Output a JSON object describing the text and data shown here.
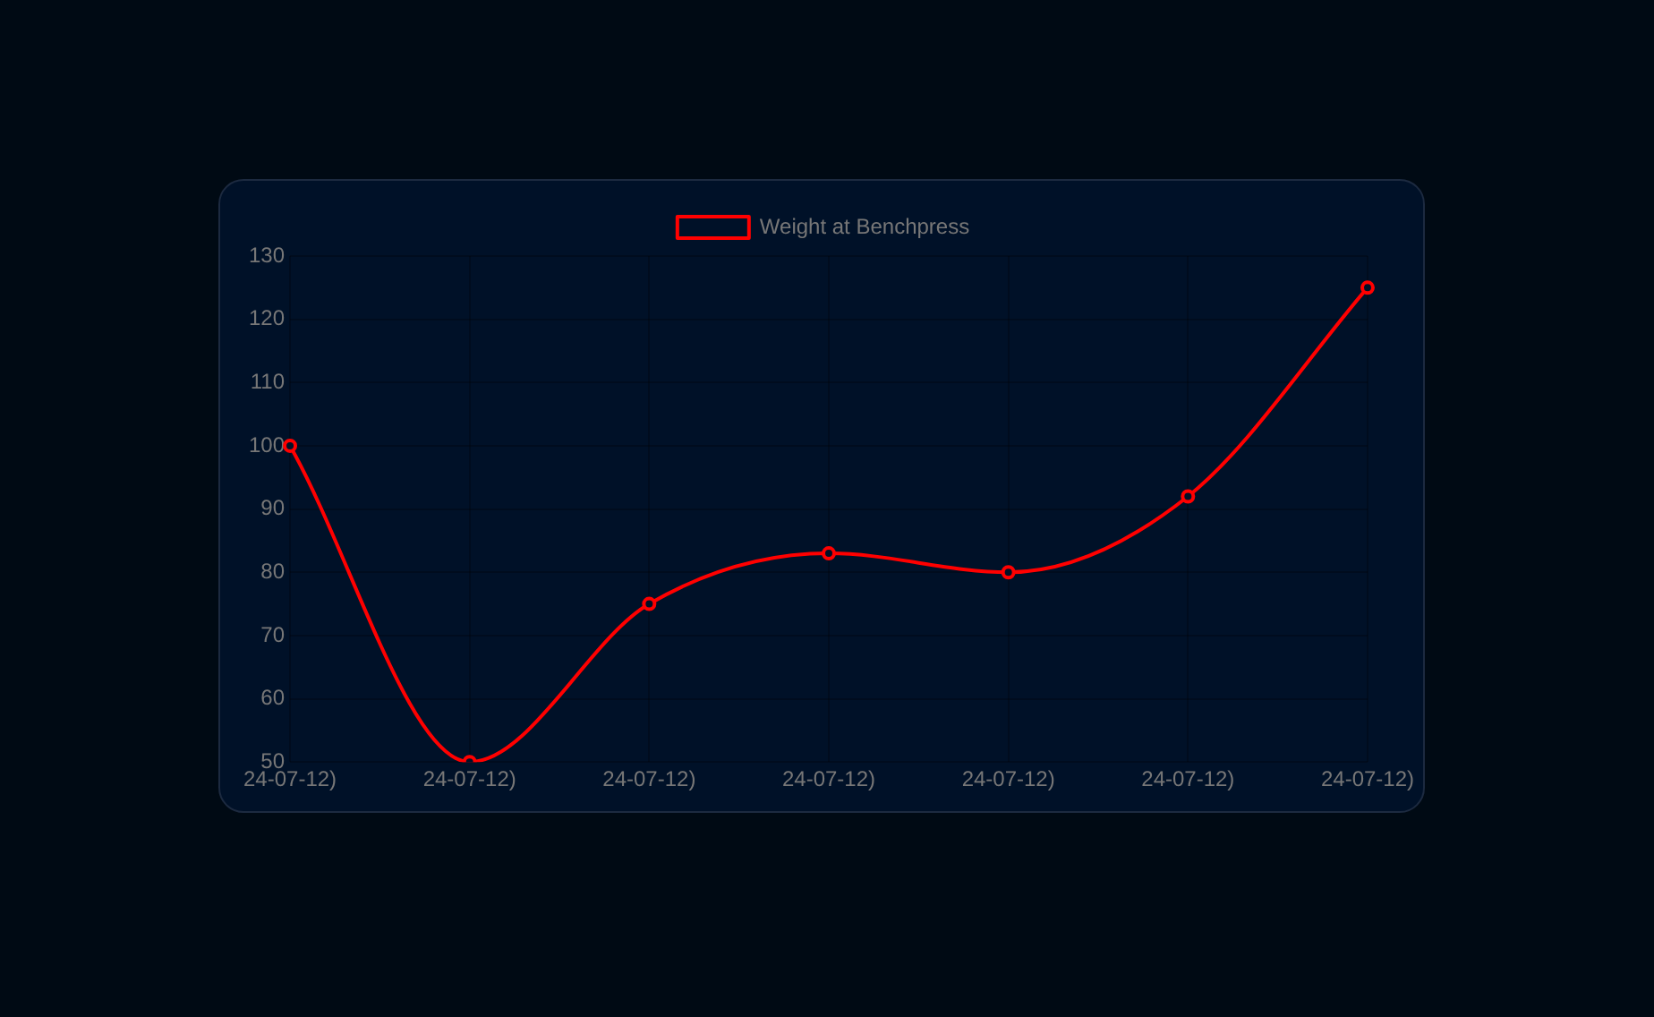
{
  "chart_data": {
    "type": "line",
    "categories": [
      "24-07-12)",
      "24-07-12)",
      "24-07-12)",
      "24-07-12)",
      "24-07-12)",
      "24-07-12)",
      "24-07-12)"
    ],
    "series": [
      {
        "name": "Weight at Benchpress",
        "color": "#ff0000",
        "values": [
          100,
          50,
          75,
          83,
          80,
          92,
          125
        ]
      }
    ],
    "ylim": [
      50,
      130
    ],
    "yticks": [
      50,
      60,
      70,
      80,
      90,
      100,
      110,
      120,
      130
    ],
    "grid": true,
    "legend": "top",
    "marker": "circle",
    "line_style": "solid"
  }
}
